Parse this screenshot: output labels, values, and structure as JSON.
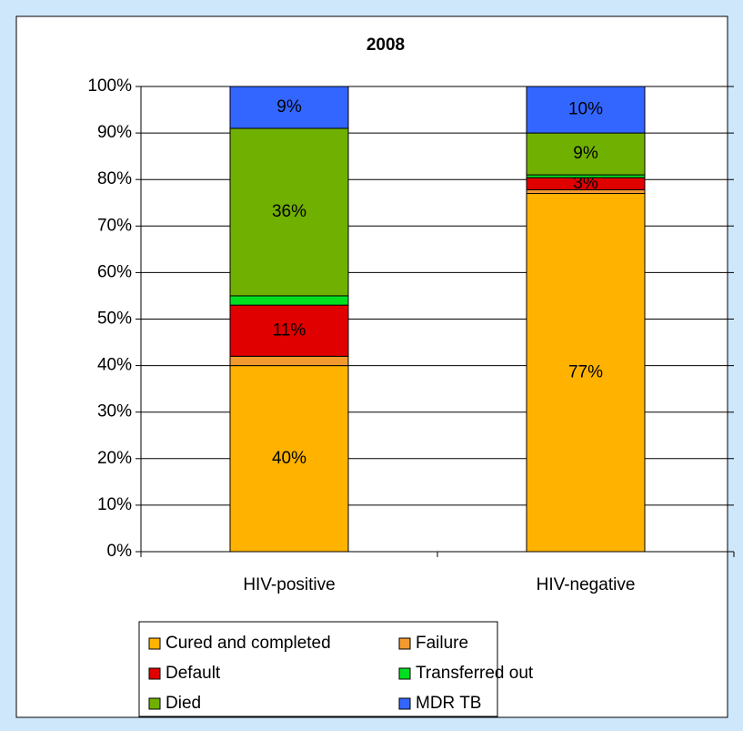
{
  "chart_data": {
    "type": "stacked_bar",
    "title": "2008",
    "categories": [
      "HIV-positive",
      "HIV-negative"
    ],
    "ylim": [
      0,
      100
    ],
    "yticks": [
      {
        "value": 0,
        "label": "0%"
      },
      {
        "value": 10,
        "label": "10%"
      },
      {
        "value": 20,
        "label": "20%"
      },
      {
        "value": 30,
        "label": "30%"
      },
      {
        "value": 40,
        "label": "40%"
      },
      {
        "value": 50,
        "label": "50%"
      },
      {
        "value": 60,
        "label": "60%"
      },
      {
        "value": 70,
        "label": "70%"
      },
      {
        "value": 80,
        "label": "80%"
      },
      {
        "value": 90,
        "label": "90%"
      },
      {
        "value": 100,
        "label": "100%"
      }
    ],
    "grid": true,
    "legend": "bottom",
    "series": [
      {
        "name": "Cured and completed",
        "color": "#ffb300",
        "label_color": "#000000",
        "values": [
          40,
          77
        ],
        "value_labels": [
          "40%",
          "77%"
        ]
      },
      {
        "name": "Failure",
        "color": "#f29a2e",
        "values": [
          2,
          0.8
        ]
      },
      {
        "name": "Default",
        "color": "#e00000",
        "label_color": "#ffffff",
        "values": [
          11,
          2.6
        ],
        "value_labels": [
          "11%",
          "3%"
        ]
      },
      {
        "name": "Transferred out",
        "color": "#00e020",
        "values": [
          2,
          0.6
        ]
      },
      {
        "name": "Died",
        "color": "#70b000",
        "label_color": "#000000",
        "values": [
          36,
          9
        ],
        "value_labels": [
          "36%",
          "9%"
        ]
      },
      {
        "name": "MDR TB",
        "color": "#3366ff",
        "label_color": "#ffffff",
        "values": [
          9,
          10
        ],
        "value_labels": [
          "9%",
          "10%"
        ]
      }
    ]
  }
}
